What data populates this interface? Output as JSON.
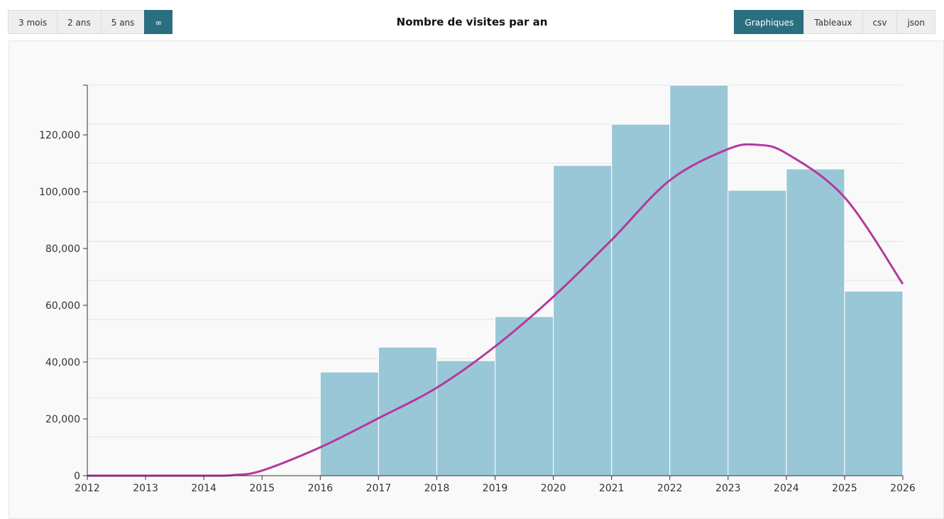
{
  "toolbar": {
    "range_buttons": [
      "3 mois",
      "2 ans",
      "5 ans",
      "∞"
    ],
    "active_range": 3,
    "view_buttons": [
      "Graphiques",
      "Tableaux",
      "csv",
      "json"
    ],
    "active_view": 0
  },
  "chart_data": {
    "type": "histogram",
    "title": "Nombre de visites par an",
    "bins": [
      2012,
      2013,
      2014,
      2015,
      2016,
      2017,
      2018,
      2019,
      2020,
      2021,
      2022,
      2023,
      2024,
      2025,
      2026
    ],
    "values": [
      0,
      0,
      0,
      0,
      36500,
      45250,
      40500,
      56000,
      109250,
      123750,
      137500,
      100500,
      108000,
      65000
    ],
    "color": "#9ac7d7",
    "trend": {
      "color": "#b5399e",
      "x": [
        2012,
        2013,
        2014,
        2014.5,
        2015,
        2016,
        2017,
        2018,
        2019,
        2020,
        2021,
        2022,
        2023,
        2023.5,
        2024,
        2025,
        2026
      ],
      "values": [
        0,
        0,
        0,
        200,
        1800,
        10000,
        20250,
        31000,
        45500,
        63000,
        83000,
        104000,
        115000,
        116500,
        113500,
        98000,
        67500
      ]
    },
    "xlim": [
      2012,
      2026
    ],
    "xticks": [
      2012,
      2013,
      2014,
      2015,
      2016,
      2017,
      2018,
      2019,
      2020,
      2021,
      2022,
      2023,
      2024,
      2025,
      2026
    ],
    "ylim": [
      0,
      137500
    ],
    "yticks": [
      0,
      {
        "value": 20000,
        "label": "20,000"
      },
      {
        "value": 40000,
        "label": "40,000"
      },
      {
        "value": 60000,
        "label": "60,000"
      },
      {
        "value": 80000,
        "label": "80,000"
      },
      {
        "value": 100000,
        "label": "100,000"
      },
      {
        "value": 120000,
        "label": "120,000"
      }
    ],
    "grid": true,
    "ygrid": [
      13750,
      27500,
      41250,
      55000,
      68750,
      82500,
      96250,
      110000,
      123750,
      137500
    ]
  }
}
